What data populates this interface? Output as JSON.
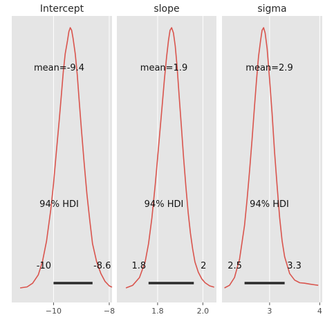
{
  "figure": {
    "background": "#ffffff",
    "panel_bg": "#e5e5e5",
    "grid_color": "#ffffff",
    "line_color": "#d9544d",
    "hdi_color": "#2b2b2b"
  },
  "chart_data": [
    {
      "type": "line",
      "title": "Intercept",
      "mean": -9.4,
      "mean_label": "mean=-9.4",
      "hdi_label": "94% HDI",
      "hdi": [
        -10.0,
        -8.6
      ],
      "hdi_labels": [
        "-10",
        "-8.6"
      ],
      "xlim": [
        -11.5,
        -7.9
      ],
      "xticks": [
        -10,
        -8
      ],
      "xtick_labels": [
        "−10",
        "−8"
      ],
      "density": {
        "x": [
          -11.2,
          -10.95,
          -10.75,
          -10.55,
          -10.4,
          -10.25,
          -10.1,
          -10.0,
          -9.9,
          -9.8,
          -9.72,
          -9.65,
          -9.58,
          -9.5,
          -9.45,
          -9.4,
          -9.35,
          -9.3,
          -9.22,
          -9.15,
          -9.08,
          -9.0,
          -8.9,
          -8.8,
          -8.7,
          -8.6,
          -8.45,
          -8.3,
          -8.15,
          -8.0,
          -7.9
        ],
        "y": [
          0.0,
          0.004,
          0.018,
          0.05,
          0.1,
          0.18,
          0.3,
          0.4,
          0.52,
          0.64,
          0.74,
          0.83,
          0.9,
          0.95,
          0.985,
          1.0,
          0.99,
          0.96,
          0.9,
          0.82,
          0.72,
          0.61,
          0.48,
          0.36,
          0.26,
          0.17,
          0.1,
          0.055,
          0.025,
          0.008,
          0.003
        ]
      }
    },
    {
      "type": "line",
      "title": "slope",
      "mean": 1.9,
      "mean_label": "mean=1.9",
      "hdi_label": "94% HDI",
      "hdi": [
        1.76,
        1.96
      ],
      "hdi_labels": [
        "1.8",
        "2"
      ],
      "xlim": [
        1.62,
        2.06
      ],
      "xticks": [
        1.8,
        2.0
      ],
      "xtick_labels": [
        "1.8",
        "2.0"
      ],
      "density": {
        "x": [
          1.66,
          1.69,
          1.72,
          1.745,
          1.76,
          1.775,
          1.79,
          1.8,
          1.81,
          1.82,
          1.83,
          1.84,
          1.848,
          1.855,
          1.862,
          1.87,
          1.878,
          1.886,
          1.895,
          1.905,
          1.915,
          1.925,
          1.935,
          1.945,
          1.955,
          1.965,
          1.98,
          1.995,
          2.01,
          2.03,
          2.05
        ],
        "y": [
          0.0,
          0.01,
          0.04,
          0.1,
          0.17,
          0.27,
          0.4,
          0.5,
          0.6,
          0.7,
          0.8,
          0.89,
          0.95,
          0.99,
          1.0,
          0.98,
          0.93,
          0.85,
          0.74,
          0.62,
          0.5,
          0.39,
          0.29,
          0.21,
          0.15,
          0.1,
          0.06,
          0.035,
          0.02,
          0.008,
          0.003
        ]
      }
    },
    {
      "type": "line",
      "title": "sigma",
      "mean": 2.9,
      "mean_label": "mean=2.9",
      "hdi_label": "94% HDI",
      "hdi": [
        2.5,
        3.3
      ],
      "hdi_labels": [
        "2.5",
        "3.3"
      ],
      "xlim": [
        2.05,
        4.05
      ],
      "xticks": [
        3,
        4
      ],
      "xtick_labels": [
        "3",
        "4"
      ],
      "density": {
        "x": [
          2.1,
          2.2,
          2.3,
          2.4,
          2.5,
          2.55,
          2.6,
          2.65,
          2.7,
          2.74,
          2.78,
          2.82,
          2.85,
          2.88,
          2.91,
          2.95,
          3.0,
          3.05,
          3.1,
          3.15,
          3.2,
          3.25,
          3.3,
          3.4,
          3.5,
          3.6,
          3.7,
          3.8,
          3.9,
          3.97
        ],
        "y": [
          0.0,
          0.01,
          0.04,
          0.11,
          0.24,
          0.34,
          0.45,
          0.57,
          0.7,
          0.8,
          0.89,
          0.95,
          0.99,
          1.0,
          0.98,
          0.92,
          0.8,
          0.67,
          0.52,
          0.39,
          0.27,
          0.18,
          0.12,
          0.055,
          0.03,
          0.02,
          0.018,
          0.015,
          0.012,
          0.01
        ]
      }
    }
  ]
}
